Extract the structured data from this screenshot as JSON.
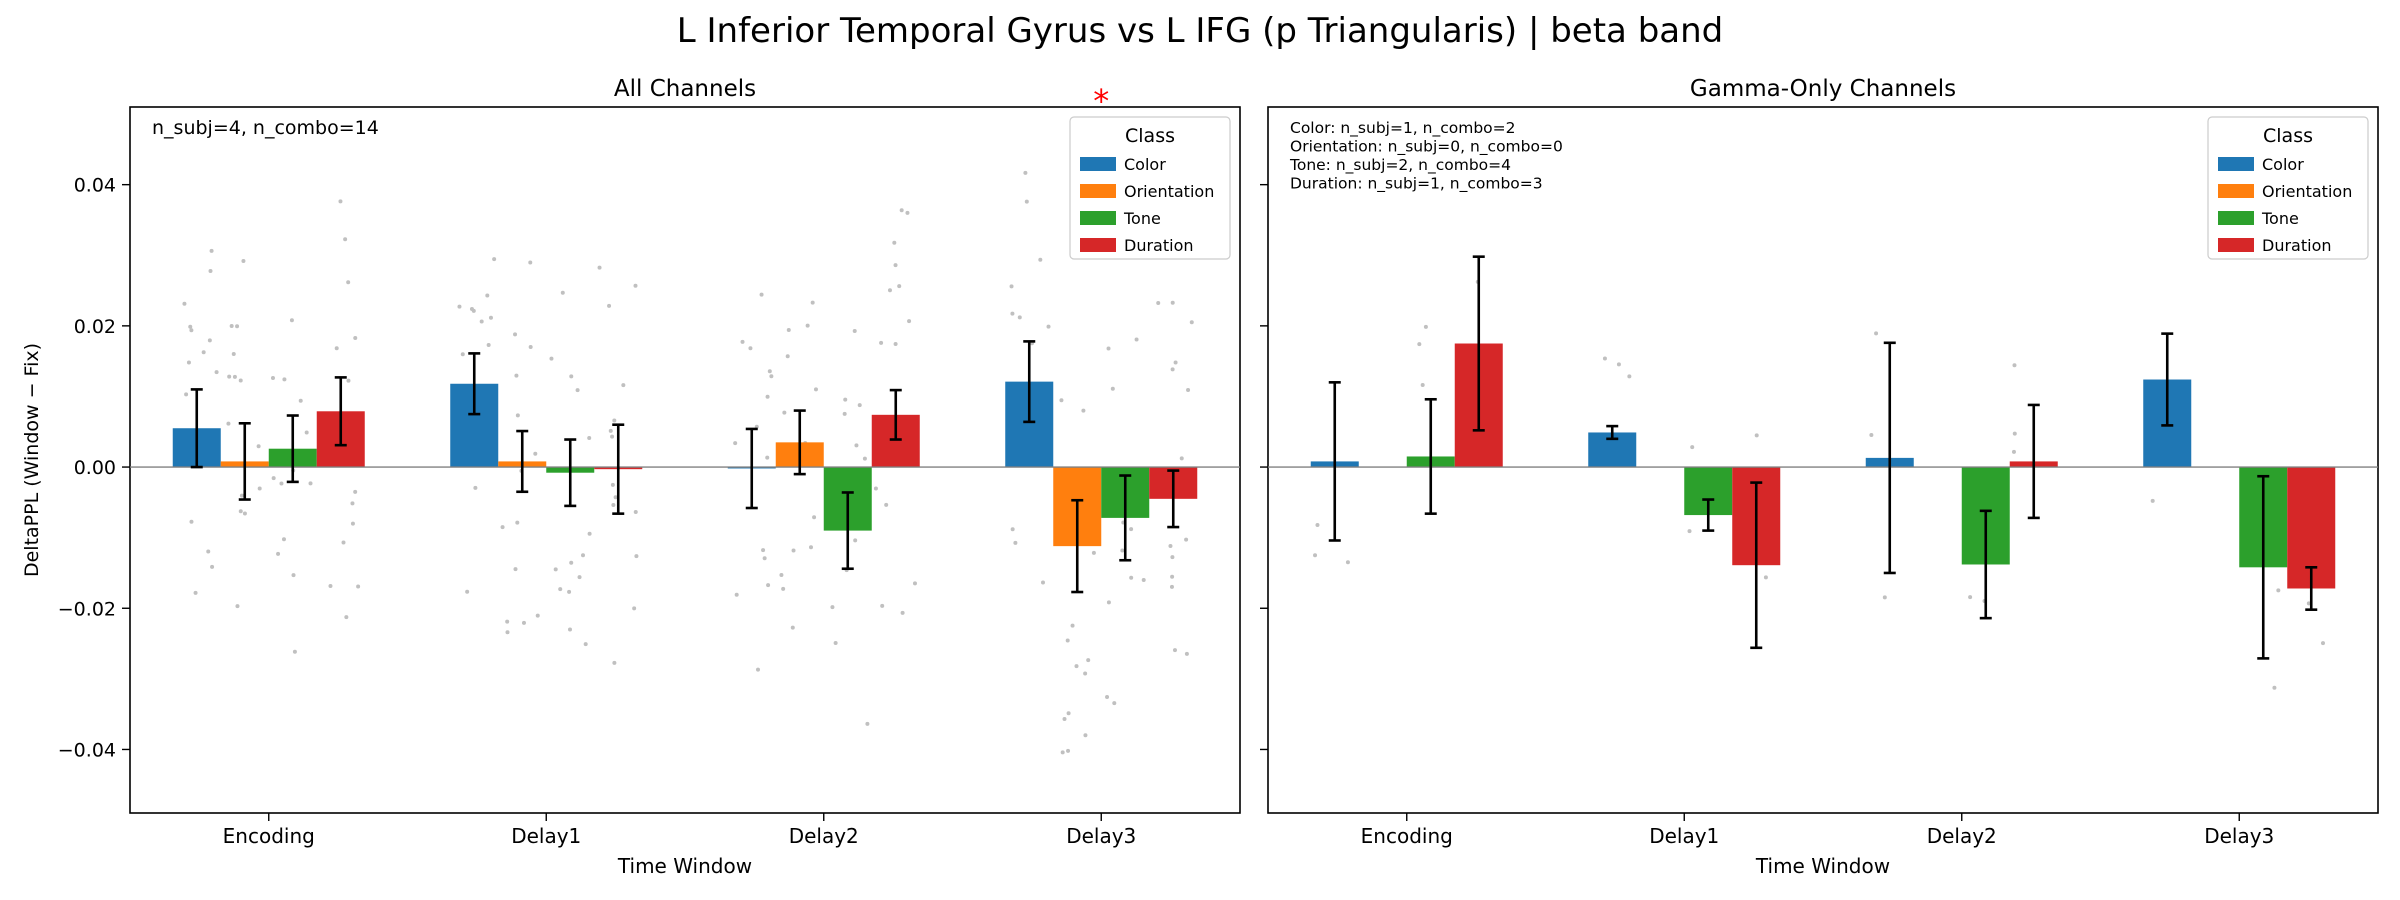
{
  "figure": {
    "suptitle": "L Inferior Temporal Gyrus vs L IFG (p Triangularis)  |  beta band"
  },
  "colors": {
    "Color": "#1f77b4",
    "Orientation": "#ff7f0e",
    "Tone": "#2ca02c",
    "Duration": "#d62728",
    "significance": "#ff0000",
    "points": "#c0c0c0"
  },
  "chart_data": [
    {
      "type": "bar",
      "title": "All Channels",
      "xlabel": "Time Window",
      "ylabel": "DeltaPPL (Window − Fix)",
      "ylim": [
        -0.049,
        0.051
      ],
      "yticks": [
        -0.04,
        -0.02,
        0.0,
        0.02,
        0.04
      ],
      "ytick_labels": [
        "−0.04",
        "−0.02",
        "0.00",
        "0.02",
        "0.04"
      ],
      "categories": [
        "Encoding",
        "Delay1",
        "Delay2",
        "Delay3"
      ],
      "legend_title": "Class",
      "legend_position": "top-right",
      "annotation": "n_subj=4, n_combo=14",
      "significance_marks": [
        {
          "category": "Delay3",
          "label": "*"
        }
      ],
      "series": [
        {
          "name": "Color",
          "values": [
            0.0055,
            0.0118,
            -0.0002,
            0.0121
          ],
          "errors": [
            0.0055,
            0.0043,
            0.0056,
            0.0057
          ]
        },
        {
          "name": "Orientation",
          "values": [
            0.0008,
            0.0008,
            0.0035,
            -0.0112
          ],
          "errors": [
            0.0054,
            0.0043,
            0.0045,
            0.0065
          ]
        },
        {
          "name": "Tone",
          "values": [
            0.0026,
            -0.0008,
            -0.009,
            -0.0072
          ],
          "errors": [
            0.0047,
            0.0047,
            0.0054,
            0.006
          ]
        },
        {
          "name": "Duration",
          "values": [
            0.0079,
            -0.0003,
            0.0074,
            -0.0045
          ],
          "errors": [
            0.0048,
            0.0063,
            0.0035,
            0.004
          ]
        }
      ]
    },
    {
      "type": "bar",
      "title": "Gamma-Only Channels",
      "xlabel": "Time Window",
      "ylabel": "",
      "ylim": [
        -0.049,
        0.051
      ],
      "yticks": [
        -0.04,
        -0.02,
        0.0,
        0.02,
        0.04
      ],
      "ytick_labels": [],
      "categories": [
        "Encoding",
        "Delay1",
        "Delay2",
        "Delay3"
      ],
      "legend_title": "Class",
      "legend_position": "top-right",
      "annotation_lines": [
        "Color: n_subj=1, n_combo=2",
        "Orientation: n_subj=0, n_combo=0",
        "Tone: n_subj=2, n_combo=4",
        "Duration: n_subj=1, n_combo=3"
      ],
      "series": [
        {
          "name": "Color",
          "values": [
            0.0008,
            0.0049,
            0.0013,
            0.0124
          ],
          "errors": [
            0.0112,
            0.0009,
            0.0163,
            0.0065
          ]
        },
        {
          "name": "Orientation",
          "values": [
            null,
            null,
            null,
            null
          ],
          "errors": [
            null,
            null,
            null,
            null
          ]
        },
        {
          "name": "Tone",
          "values": [
            0.0015,
            -0.0068,
            -0.0138,
            -0.0142
          ],
          "errors": [
            0.0081,
            0.0022,
            0.0076,
            0.0129
          ]
        },
        {
          "name": "Duration",
          "values": [
            0.0175,
            -0.0139,
            0.0008,
            -0.0172
          ],
          "errors": [
            0.0123,
            0.0117,
            0.008,
            0.003
          ]
        }
      ]
    }
  ]
}
